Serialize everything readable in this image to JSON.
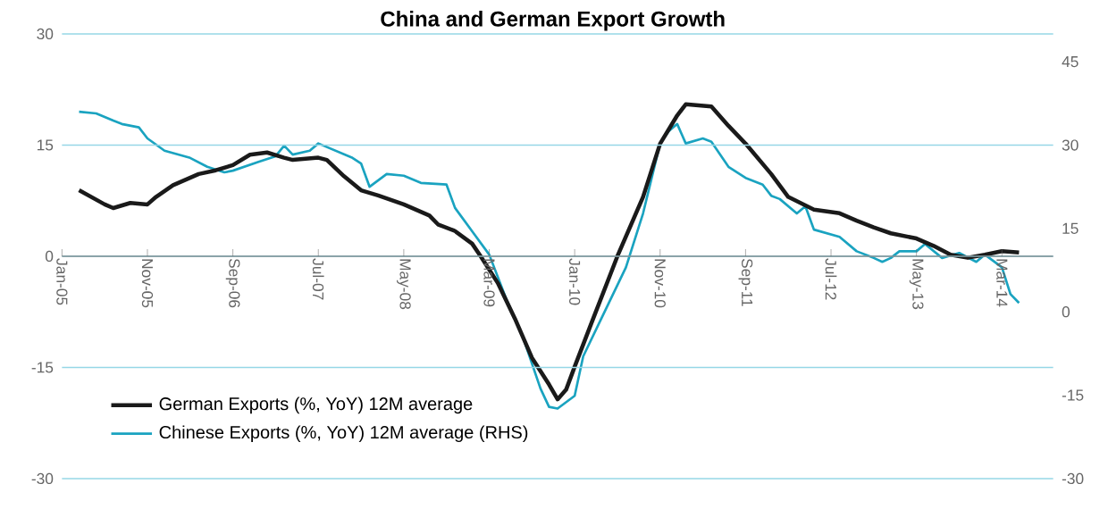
{
  "chart_data": {
    "type": "line",
    "title": "China and German Export Growth",
    "xlim": [
      "2005-01",
      "2014-09"
    ],
    "xticks": [
      {
        "value": "2005-01",
        "label": "Jan-05"
      },
      {
        "value": "2005-11",
        "label": "Nov-05"
      },
      {
        "value": "2006-09",
        "label": "Sep-06"
      },
      {
        "value": "2007-07",
        "label": "Jul-07"
      },
      {
        "value": "2008-05",
        "label": "May-08"
      },
      {
        "value": "2009-03",
        "label": "Mar-09"
      },
      {
        "value": "2010-01",
        "label": "Jan-10"
      },
      {
        "value": "2010-11",
        "label": "Nov-10"
      },
      {
        "value": "2011-09",
        "label": "Sep-11"
      },
      {
        "value": "2012-07",
        "label": "Jul-12"
      },
      {
        "value": "2013-05",
        "label": "May-13"
      },
      {
        "value": "2014-03",
        "label": "Mar-14"
      }
    ],
    "ylim": [
      -30,
      30
    ],
    "yticks": [
      -30,
      -15,
      0,
      15,
      30
    ],
    "y2lim": [
      -30,
      50
    ],
    "y2ticks": [
      -30,
      -15,
      0,
      15,
      30,
      45
    ],
    "grid": "y",
    "legend": "bottom left",
    "line_style": "solid",
    "series": [
      {
        "name": "German Exports (%, YoY) 12M average",
        "color": "#1a1a1a",
        "x": [
          "2005-03",
          "2005-06",
          "2005-07",
          "2005-09",
          "2005-11",
          "2005-12",
          "2006-02",
          "2006-05",
          "2006-07",
          "2006-09",
          "2006-11",
          "2007-01",
          "2007-03",
          "2007-04",
          "2007-07",
          "2007-08",
          "2007-10",
          "2007-12",
          "2008-02",
          "2008-05",
          "2008-08",
          "2008-09",
          "2008-11",
          "2009-01",
          "2009-02",
          "2009-04",
          "2009-06",
          "2009-08",
          "2009-10",
          "2009-11",
          "2009-12",
          "2010-01",
          "2010-03",
          "2010-06",
          "2010-09",
          "2010-11",
          "2011-01",
          "2011-02",
          "2011-05",
          "2011-07",
          "2011-09",
          "2011-12",
          "2012-02",
          "2012-05",
          "2012-08",
          "2012-10",
          "2012-12",
          "2013-02",
          "2013-05",
          "2013-07",
          "2013-09",
          "2013-11",
          "2014-01",
          "2014-03",
          "2014-05"
        ],
        "values": [
          8.9,
          7.0,
          6.5,
          7.2,
          7.0,
          8.0,
          9.6,
          11.1,
          11.6,
          12.3,
          13.7,
          14.0,
          13.3,
          13.0,
          13.3,
          13.0,
          10.8,
          8.9,
          8.2,
          7.0,
          5.5,
          4.3,
          3.4,
          1.7,
          0,
          -3.6,
          -8.4,
          -13.7,
          -17.3,
          -19.3,
          -18.0,
          -14.9,
          -8.9,
          0,
          8.0,
          15.2,
          19.0,
          20.5,
          20.2,
          17.6,
          15.2,
          11.1,
          8.0,
          6.3,
          5.8,
          4.8,
          3.9,
          3.1,
          2.4,
          1.4,
          0.2,
          -0.2,
          0.2,
          0.7,
          0.5
        ]
      },
      {
        "name": "Chinese Exports (%, YoY) 12M average (RHS)",
        "color": "#1aa3c0",
        "axis": "y2",
        "x": [
          "2005-03",
          "2005-05",
          "2005-07",
          "2005-08",
          "2005-10",
          "2005-11",
          "2006-01",
          "2006-04",
          "2006-06",
          "2006-08",
          "2006-09",
          "2006-12",
          "2007-02",
          "2007-03",
          "2007-04",
          "2007-06",
          "2007-07",
          "2007-09",
          "2007-11",
          "2007-12",
          "2008-01",
          "2008-03",
          "2008-05",
          "2008-07",
          "2008-10",
          "2008-11",
          "2009-01",
          "2009-03",
          "2009-05",
          "2009-07",
          "2009-09",
          "2009-10",
          "2009-11",
          "2010-01",
          "2010-02",
          "2010-04",
          "2010-07",
          "2010-09",
          "2010-11",
          "2010-12",
          "2011-01",
          "2011-02",
          "2011-04",
          "2011-05",
          "2011-07",
          "2011-09",
          "2011-11",
          "2011-12",
          "2012-01",
          "2012-03",
          "2012-04",
          "2012-05",
          "2012-08",
          "2012-10",
          "2012-12",
          "2013-01",
          "2013-02",
          "2013-03",
          "2013-05",
          "2013-06",
          "2013-08",
          "2013-10",
          "2013-12",
          "2014-01",
          "2014-03",
          "2014-04",
          "2014-05"
        ],
        "values": [
          36.0,
          35.7,
          34.4,
          33.8,
          33.2,
          31.2,
          29.0,
          27.7,
          26.1,
          25.1,
          25.4,
          27.0,
          28.0,
          29.9,
          28.3,
          29.0,
          30.3,
          29.0,
          27.7,
          26.7,
          22.5,
          24.8,
          24.5,
          23.2,
          22.9,
          18.7,
          14.5,
          10.3,
          2.3,
          -4.8,
          -13.8,
          -17.1,
          -17.4,
          -15.1,
          -8.0,
          -1.6,
          8.0,
          17.7,
          30.3,
          32.5,
          33.8,
          30.3,
          31.2,
          30.6,
          26.1,
          24.1,
          22.9,
          20.9,
          20.3,
          17.7,
          19.0,
          14.8,
          13.5,
          10.9,
          9.7,
          9.0,
          9.7,
          10.9,
          10.9,
          12.2,
          9.7,
          10.6,
          9.0,
          10.3,
          8.0,
          3.2,
          1.6
        ]
      }
    ]
  }
}
